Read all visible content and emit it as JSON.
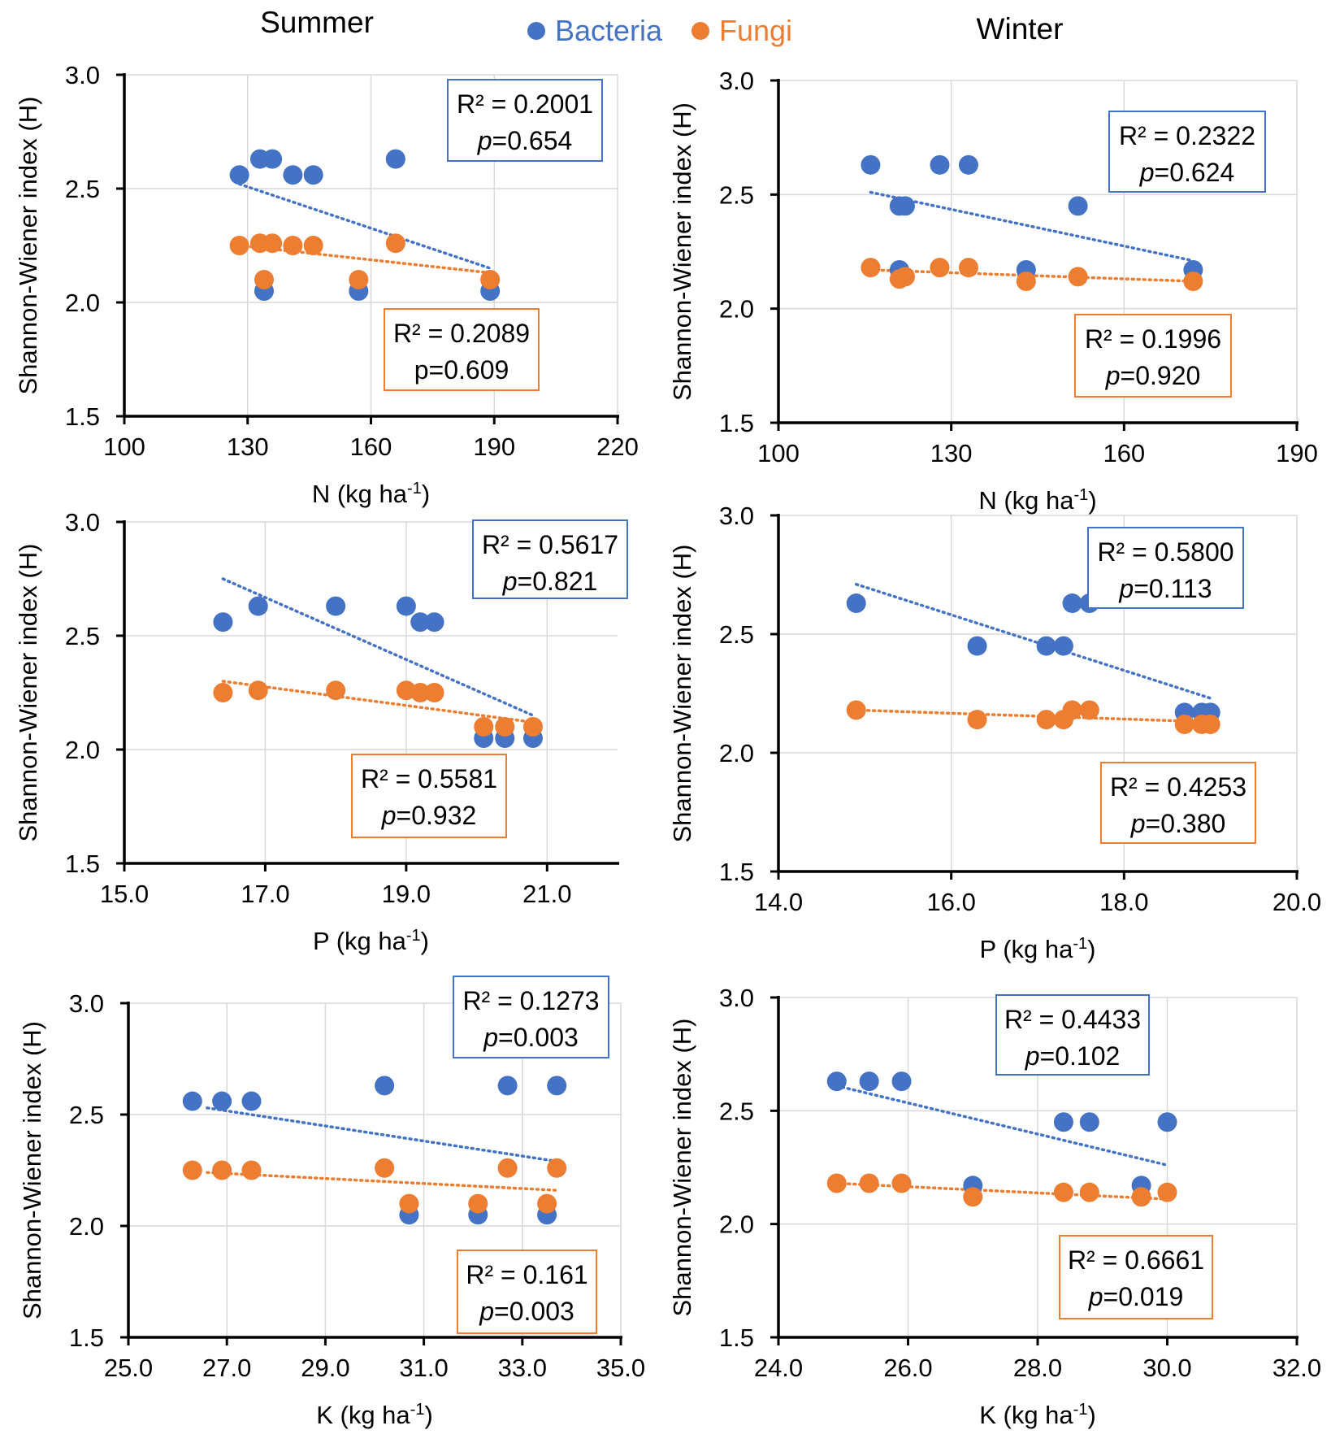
{
  "header": {
    "summer": "Summer",
    "winter": "Winter",
    "legend": [
      {
        "label": "Bacteria",
        "color": "#4472c4"
      },
      {
        "label": "Fungi",
        "color": "#ed7d31"
      }
    ]
  },
  "chart_data": [
    {
      "type": "scatter",
      "season": "Summer",
      "xlabel": "N (kg ha",
      "xlabel_sup": "-1",
      "xlabel_end": ")",
      "ylabel": "Shannon-Wiener index (H)",
      "xlim": [
        100,
        220
      ],
      "xticks": [
        100,
        130,
        160,
        190,
        220
      ],
      "ylim": [
        1.5,
        3.0
      ],
      "yticks": [
        "1.5",
        "2.0",
        "2.5",
        "3.0"
      ],
      "series": [
        {
          "name": "Bacteria",
          "color": "#4472c4",
          "points": [
            [
              128,
              2.56
            ],
            [
              133,
              2.63
            ],
            [
              136,
              2.63
            ],
            [
              141,
              2.56
            ],
            [
              146,
              2.56
            ],
            [
              166,
              2.63
            ],
            [
              134,
              2.05
            ],
            [
              157,
              2.05
            ],
            [
              189,
              2.05
            ]
          ],
          "trend": [
            [
              128,
              2.52
            ],
            [
              189,
              2.15
            ]
          ],
          "r2_label": "R² = 0.2001",
          "p_prefix": "p",
          "p_value": "=0.654",
          "p_italic": true
        },
        {
          "name": "Fungi",
          "color": "#ed7d31",
          "points": [
            [
              128,
              2.25
            ],
            [
              133,
              2.26
            ],
            [
              136,
              2.26
            ],
            [
              141,
              2.25
            ],
            [
              146,
              2.25
            ],
            [
              166,
              2.26
            ],
            [
              134,
              2.1
            ],
            [
              157,
              2.1
            ],
            [
              189,
              2.1
            ]
          ],
          "trend": [
            [
              128,
              2.25
            ],
            [
              189,
              2.13
            ]
          ],
          "r2_label": "R² = 0.2089",
          "p_prefix": "p",
          "p_value": "=0.609",
          "p_italic": false
        }
      ]
    },
    {
      "type": "scatter",
      "season": "Winter",
      "xlabel": "N (kg ha",
      "xlabel_sup": "-1",
      "xlabel_end": ")",
      "ylabel": "Shannon-Wiener index (H)",
      "xlim": [
        100,
        190
      ],
      "xticks": [
        100,
        130,
        160,
        190
      ],
      "ylim": [
        1.5,
        3.0
      ],
      "yticks": [
        "1.5",
        "2.0",
        "2.5",
        "3.0"
      ],
      "series": [
        {
          "name": "Bacteria",
          "color": "#4472c4",
          "points": [
            [
              116,
              2.63
            ],
            [
              121,
              2.45
            ],
            [
              122,
              2.45
            ],
            [
              128,
              2.63
            ],
            [
              133,
              2.63
            ],
            [
              152,
              2.45
            ],
            [
              121,
              2.17
            ],
            [
              143,
              2.17
            ],
            [
              172,
              2.17
            ]
          ],
          "trend": [
            [
              116,
              2.51
            ],
            [
              172,
              2.21
            ]
          ],
          "r2_label": "R² = 0.2322",
          "p_prefix": "p",
          "p_value": "=0.624",
          "p_italic": true
        },
        {
          "name": "Fungi",
          "color": "#ed7d31",
          "points": [
            [
              116,
              2.18
            ],
            [
              121,
              2.13
            ],
            [
              122,
              2.14
            ],
            [
              128,
              2.18
            ],
            [
              133,
              2.18
            ],
            [
              152,
              2.14
            ],
            [
              143,
              2.12
            ],
            [
              172,
              2.12
            ]
          ],
          "trend": [
            [
              116,
              2.17
            ],
            [
              172,
              2.12
            ]
          ],
          "r2_label": "R² = 0.1996",
          "p_prefix": "p",
          "p_value": "=0.920",
          "p_italic": true
        }
      ]
    },
    {
      "type": "scatter",
      "season": "Summer",
      "xlabel": "P (kg ha",
      "xlabel_sup": "-1",
      "xlabel_end": ")",
      "ylabel": "Shannon-Wiener index (H)",
      "xlim": [
        15,
        22
      ],
      "xticks": [
        "15.0",
        "17.0",
        "19.0",
        "21.0"
      ],
      "ylim": [
        1.5,
        3.0
      ],
      "yticks": [
        "1.5",
        "2.0",
        "2.5",
        "3.0"
      ],
      "series": [
        {
          "name": "Bacteria",
          "color": "#4472c4",
          "points": [
            [
              16.4,
              2.56
            ],
            [
              16.9,
              2.63
            ],
            [
              18.0,
              2.63
            ],
            [
              19.0,
              2.63
            ],
            [
              19.2,
              2.56
            ],
            [
              19.4,
              2.56
            ],
            [
              20.1,
              2.05
            ],
            [
              20.4,
              2.05
            ],
            [
              20.8,
              2.05
            ]
          ],
          "trend": [
            [
              16.4,
              2.75
            ],
            [
              20.8,
              2.15
            ]
          ],
          "r2_label": "R² = 0.5617",
          "p_prefix": "p",
          "p_value": "=0.821",
          "p_italic": true
        },
        {
          "name": "Fungi",
          "color": "#ed7d31",
          "points": [
            [
              16.4,
              2.25
            ],
            [
              16.9,
              2.26
            ],
            [
              18.0,
              2.26
            ],
            [
              19.0,
              2.26
            ],
            [
              19.2,
              2.25
            ],
            [
              19.4,
              2.25
            ],
            [
              20.1,
              2.1
            ],
            [
              20.4,
              2.1
            ],
            [
              20.8,
              2.1
            ]
          ],
          "trend": [
            [
              16.4,
              2.3
            ],
            [
              20.8,
              2.12
            ]
          ],
          "r2_label": "R² = 0.5581",
          "p_prefix": "p",
          "p_value": "=0.932",
          "p_italic": true
        }
      ]
    },
    {
      "type": "scatter",
      "season": "Winter",
      "xlabel": "P (kg ha",
      "xlabel_sup": "-1",
      "xlabel_end": ")",
      "ylabel": "Shannon-Wiener index (H)",
      "xlim": [
        14,
        20
      ],
      "xticks": [
        "14.0",
        "16.0",
        "18.0",
        "20.0"
      ],
      "ylim": [
        1.5,
        3.0
      ],
      "yticks": [
        "1.5",
        "2.0",
        "2.5",
        "3.0"
      ],
      "series": [
        {
          "name": "Bacteria",
          "color": "#4472c4",
          "points": [
            [
              14.9,
              2.63
            ],
            [
              16.3,
              2.45
            ],
            [
              17.1,
              2.45
            ],
            [
              17.3,
              2.45
            ],
            [
              17.4,
              2.63
            ],
            [
              17.6,
              2.63
            ],
            [
              18.7,
              2.17
            ],
            [
              18.9,
              2.17
            ],
            [
              19.0,
              2.17
            ]
          ],
          "trend": [
            [
              14.9,
              2.71
            ],
            [
              19.0,
              2.23
            ]
          ],
          "r2_label": "R² = 0.5800",
          "p_prefix": "p",
          "p_value": "=0.113",
          "p_italic": true
        },
        {
          "name": "Fungi",
          "color": "#ed7d31",
          "points": [
            [
              14.9,
              2.18
            ],
            [
              16.3,
              2.14
            ],
            [
              17.1,
              2.14
            ],
            [
              17.3,
              2.14
            ],
            [
              17.4,
              2.18
            ],
            [
              17.6,
              2.18
            ],
            [
              18.7,
              2.12
            ],
            [
              18.9,
              2.12
            ],
            [
              19.0,
              2.12
            ]
          ],
          "trend": [
            [
              14.9,
              2.18
            ],
            [
              19.0,
              2.13
            ]
          ],
          "r2_label": "R² = 0.4253",
          "p_prefix": "p",
          "p_value": "=0.380",
          "p_italic": true
        }
      ]
    },
    {
      "type": "scatter",
      "season": "Summer",
      "xlabel": "K (kg ha",
      "xlabel_sup": "-1",
      "xlabel_end": ")",
      "ylabel": "Shannon-Wiener index (H)",
      "xlim": [
        25,
        35
      ],
      "xticks": [
        "25.0",
        "27.0",
        "29.0",
        "31.0",
        "33.0",
        "35.0"
      ],
      "ylim": [
        1.5,
        3.0
      ],
      "yticks": [
        "1.5",
        "2.0",
        "2.5",
        "3.0"
      ],
      "series": [
        {
          "name": "Bacteria",
          "color": "#4472c4",
          "points": [
            [
              26.3,
              2.56
            ],
            [
              26.9,
              2.56
            ],
            [
              27.5,
              2.56
            ],
            [
              30.2,
              2.63
            ],
            [
              32.7,
              2.63
            ],
            [
              33.7,
              2.63
            ],
            [
              30.7,
              2.05
            ],
            [
              32.1,
              2.05
            ],
            [
              33.5,
              2.05
            ]
          ],
          "trend": [
            [
              26.6,
              2.53
            ],
            [
              33.7,
              2.29
            ]
          ],
          "r2_label": "R² = 0.1273",
          "p_prefix": "p",
          "p_value": "=0.003",
          "p_italic": true
        },
        {
          "name": "Fungi",
          "color": "#ed7d31",
          "points": [
            [
              26.3,
              2.25
            ],
            [
              26.9,
              2.25
            ],
            [
              27.5,
              2.25
            ],
            [
              30.2,
              2.26
            ],
            [
              32.7,
              2.26
            ],
            [
              33.7,
              2.26
            ],
            [
              30.7,
              2.1
            ],
            [
              32.1,
              2.1
            ],
            [
              33.5,
              2.1
            ]
          ],
          "trend": [
            [
              26.6,
              2.24
            ],
            [
              33.7,
              2.16
            ]
          ],
          "r2_label": "R² = 0.161",
          "p_prefix": "p",
          "p_value": "=0.003",
          "p_italic": true
        }
      ]
    },
    {
      "type": "scatter",
      "season": "Winter",
      "xlabel": "K (kg ha",
      "xlabel_sup": "-1",
      "xlabel_end": ")",
      "ylabel": "Shannon-Wiener index (H)",
      "xlim": [
        24,
        32
      ],
      "xticks": [
        "24.0",
        "26.0",
        "28.0",
        "30.0",
        "32.0"
      ],
      "ylim": [
        1.5,
        3.0
      ],
      "yticks": [
        "1.5",
        "2.0",
        "2.5",
        "3.0"
      ],
      "series": [
        {
          "name": "Bacteria",
          "color": "#4472c4",
          "points": [
            [
              24.9,
              2.63
            ],
            [
              25.4,
              2.63
            ],
            [
              25.9,
              2.63
            ],
            [
              27.0,
              2.17
            ],
            [
              28.4,
              2.45
            ],
            [
              28.8,
              2.45
            ],
            [
              29.6,
              2.17
            ],
            [
              30.0,
              2.45
            ]
          ],
          "trend": [
            [
              24.9,
              2.61
            ],
            [
              30.0,
              2.26
            ]
          ],
          "r2_label": "R² = 0.4433",
          "p_prefix": "p",
          "p_value": "=0.102",
          "p_italic": true
        },
        {
          "name": "Fungi",
          "color": "#ed7d31",
          "points": [
            [
              24.9,
              2.18
            ],
            [
              25.4,
              2.18
            ],
            [
              25.9,
              2.18
            ],
            [
              27.0,
              2.12
            ],
            [
              28.4,
              2.14
            ],
            [
              28.8,
              2.14
            ],
            [
              29.6,
              2.12
            ],
            [
              30.0,
              2.14
            ]
          ],
          "trend": [
            [
              24.9,
              2.18
            ],
            [
              30.0,
              2.11
            ]
          ],
          "r2_label": "R² = 0.6661",
          "p_prefix": "p",
          "p_value": "=0.019",
          "p_italic": true
        }
      ]
    }
  ]
}
